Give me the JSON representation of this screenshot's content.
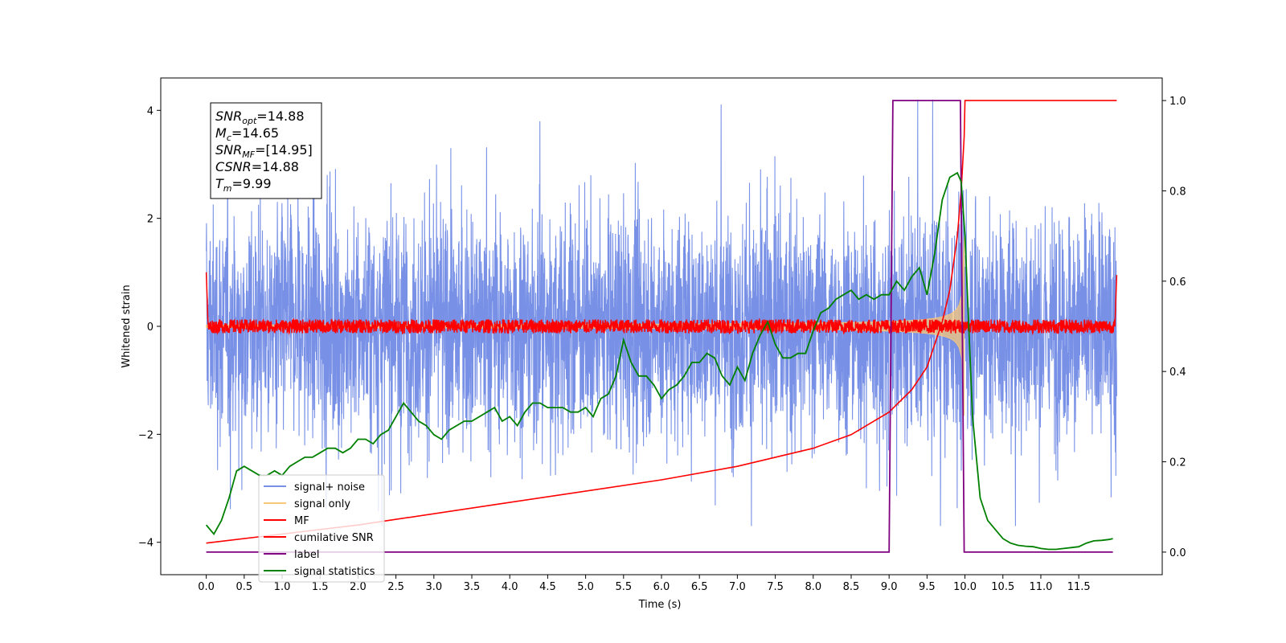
{
  "chart_data": {
    "type": "line",
    "xlabel": "Time (s)",
    "ylabel": "Whitened strain",
    "xlim": [
      -0.6,
      12.6
    ],
    "ylim": [
      -4.6,
      4.6
    ],
    "y2lim": [
      -0.05,
      1.05
    ],
    "x_ticks": [
      "0.0",
      "0.5",
      "1.0",
      "1.5",
      "2.0",
      "2.5",
      "3.0",
      "3.5",
      "4.0",
      "4.5",
      "5.0",
      "5.5",
      "6.0",
      "6.5",
      "7.0",
      "7.5",
      "8.0",
      "8.5",
      "9.0",
      "9.5",
      "10.0",
      "10.5",
      "11.0",
      "11.5"
    ],
    "y_ticks": [
      "−4",
      "−2",
      "0",
      "2",
      "4"
    ],
    "y2_ticks": [
      "0.0",
      "0.2",
      "0.4",
      "0.6",
      "0.8",
      "1.0"
    ],
    "annotation": [
      {
        "name": "SNR",
        "sub": "opt",
        "value": "=14.88"
      },
      {
        "name": "M",
        "sub": "c",
        "value": "=14.65"
      },
      {
        "name": "SNR",
        "sub": "MF",
        "value": "=[14.95]"
      },
      {
        "name": "CSNR",
        "sub": "",
        "value": "=14.88"
      },
      {
        "name": "T",
        "sub": "m",
        "value": "=9.99"
      }
    ],
    "legend": {
      "placement": "lower-left",
      "entries": [
        {
          "label": "signal+ noise",
          "color": "#7891e6"
        },
        {
          "label": "signal only",
          "color": "#f8c77a"
        },
        {
          "label": "MF",
          "color": "#ff0000"
        },
        {
          "label": "cumilative SNR",
          "color": "#ff0000"
        },
        {
          "label": "label",
          "color": "#800080"
        },
        {
          "label": "signal statistics",
          "color": "#008000"
        }
      ]
    },
    "series": [
      {
        "name": "signal+ noise",
        "axis": "left",
        "color": "#7891e6",
        "description_range": [
          -3.7,
          4.2
        ],
        "x_range": [
          0.0,
          12.0
        ]
      },
      {
        "name": "signal only",
        "axis": "left",
        "color": "#f8c77a",
        "chirp_end": 9.99
      },
      {
        "name": "MF",
        "axis": "left",
        "color": "#ff0000",
        "x_range": [
          0.0,
          12.0
        ],
        "edge_values": [
          1.0,
          0.95
        ]
      },
      {
        "name": "cumilative SNR",
        "axis": "right",
        "color": "#ff0000",
        "x": [
          0.0,
          2.0,
          4.0,
          6.0,
          7.0,
          8.0,
          8.5,
          9.0,
          9.3,
          9.5,
          9.7,
          9.8,
          9.9,
          9.95,
          9.99,
          10.0,
          12.0
        ],
        "y": [
          0.02,
          0.06,
          0.11,
          0.16,
          0.19,
          0.23,
          0.26,
          0.31,
          0.36,
          0.41,
          0.51,
          0.58,
          0.7,
          0.8,
          0.92,
          1.0,
          1.0
        ]
      },
      {
        "name": "label",
        "axis": "right",
        "color": "#800080",
        "x": [
          0.0,
          9.0,
          9.05,
          9.94,
          9.99,
          11.95
        ],
        "y": [
          0.0,
          0.0,
          1.0,
          1.0,
          0.0,
          0.0
        ]
      },
      {
        "name": "signal statistics",
        "axis": "right",
        "color": "#008000",
        "x": [
          0.0,
          0.1,
          0.2,
          0.3,
          0.4,
          0.5,
          0.6,
          0.7,
          0.8,
          0.9,
          1.0,
          1.1,
          1.2,
          1.3,
          1.4,
          1.5,
          1.6,
          1.7,
          1.8,
          1.9,
          2.0,
          2.1,
          2.2,
          2.3,
          2.4,
          2.5,
          2.6,
          2.7,
          2.8,
          2.9,
          3.0,
          3.1,
          3.2,
          3.3,
          3.4,
          3.5,
          3.6,
          3.7,
          3.8,
          3.9,
          4.0,
          4.1,
          4.2,
          4.3,
          4.4,
          4.5,
          4.6,
          4.7,
          4.8,
          4.9,
          5.0,
          5.1,
          5.2,
          5.3,
          5.4,
          5.5,
          5.6,
          5.7,
          5.8,
          5.9,
          6.0,
          6.1,
          6.2,
          6.3,
          6.4,
          6.5,
          6.6,
          6.7,
          6.8,
          6.9,
          7.0,
          7.1,
          7.2,
          7.3,
          7.4,
          7.5,
          7.6,
          7.7,
          7.8,
          7.9,
          8.0,
          8.1,
          8.2,
          8.3,
          8.4,
          8.5,
          8.6,
          8.7,
          8.8,
          8.9,
          9.0,
          9.1,
          9.2,
          9.3,
          9.4,
          9.5,
          9.6,
          9.7,
          9.8,
          9.9,
          9.95,
          10.0,
          10.1,
          10.2,
          10.3,
          10.4,
          10.5,
          10.6,
          10.7,
          10.8,
          10.9,
          11.0,
          11.1,
          11.2,
          11.3,
          11.4,
          11.5,
          11.6,
          11.7,
          11.8,
          11.9,
          11.95
        ],
        "y": [
          0.06,
          0.04,
          0.07,
          0.12,
          0.18,
          0.19,
          0.18,
          0.17,
          0.17,
          0.18,
          0.17,
          0.19,
          0.2,
          0.21,
          0.21,
          0.22,
          0.23,
          0.23,
          0.22,
          0.23,
          0.25,
          0.25,
          0.24,
          0.26,
          0.27,
          0.3,
          0.33,
          0.31,
          0.29,
          0.28,
          0.26,
          0.25,
          0.27,
          0.28,
          0.29,
          0.29,
          0.3,
          0.31,
          0.32,
          0.29,
          0.3,
          0.28,
          0.31,
          0.33,
          0.33,
          0.32,
          0.32,
          0.32,
          0.31,
          0.31,
          0.32,
          0.3,
          0.34,
          0.35,
          0.39,
          0.47,
          0.42,
          0.39,
          0.39,
          0.37,
          0.34,
          0.36,
          0.37,
          0.39,
          0.42,
          0.42,
          0.44,
          0.43,
          0.39,
          0.37,
          0.41,
          0.38,
          0.44,
          0.48,
          0.51,
          0.46,
          0.43,
          0.43,
          0.44,
          0.44,
          0.49,
          0.53,
          0.54,
          0.56,
          0.57,
          0.58,
          0.56,
          0.57,
          0.56,
          0.57,
          0.57,
          0.6,
          0.58,
          0.61,
          0.63,
          0.57,
          0.66,
          0.78,
          0.83,
          0.84,
          0.82,
          0.7,
          0.3,
          0.12,
          0.07,
          0.05,
          0.03,
          0.02,
          0.015,
          0.013,
          0.012,
          0.008,
          0.006,
          0.006,
          0.008,
          0.01,
          0.012,
          0.02,
          0.025,
          0.026,
          0.028,
          0.03
        ]
      }
    ]
  }
}
